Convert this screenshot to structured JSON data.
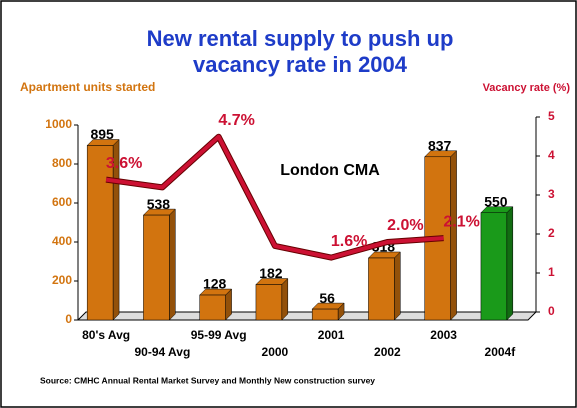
{
  "chart_data": {
    "type": "bar_line",
    "title": "New rental supply to push up vacancy rate in 2004",
    "y_axis_label": "Apartment units started",
    "y2_axis_label": "Vacancy rate (%)",
    "annotation": "London CMA",
    "source": "Source:  CMHC Annual Rental Market Survey and Monthly New construction survey",
    "categories": [
      "80's Avg",
      "90-94 Avg",
      "95-99 Avg",
      "2000",
      "2001",
      "2002",
      "2003",
      "2004f"
    ],
    "series": [
      {
        "name": "Apartment units started",
        "type": "bar",
        "values": [
          895,
          538,
          128,
          182,
          56,
          318,
          837,
          550
        ],
        "colors": [
          "#d2740f",
          "#d2740f",
          "#d2740f",
          "#d2740f",
          "#d2740f",
          "#d2740f",
          "#d2740f",
          "#1a9a1a"
        ]
      },
      {
        "name": "Vacancy rate (%)",
        "type": "line",
        "axis": "y2",
        "color": "#cc1133",
        "values": [
          3.6,
          3.4,
          4.7,
          1.9,
          1.6,
          2.0,
          2.1,
          null
        ],
        "value_labels": [
          "3.6%",
          null,
          "4.7%",
          null,
          "1.6%",
          "2.0%",
          "2.1%",
          null
        ]
      }
    ],
    "ylim": [
      0,
      1000
    ],
    "yticks": [
      0,
      200,
      400,
      600,
      800,
      1000
    ],
    "y2lim": [
      0,
      5
    ],
    "y2ticks": [
      0,
      1,
      2,
      3,
      4,
      5
    ]
  }
}
